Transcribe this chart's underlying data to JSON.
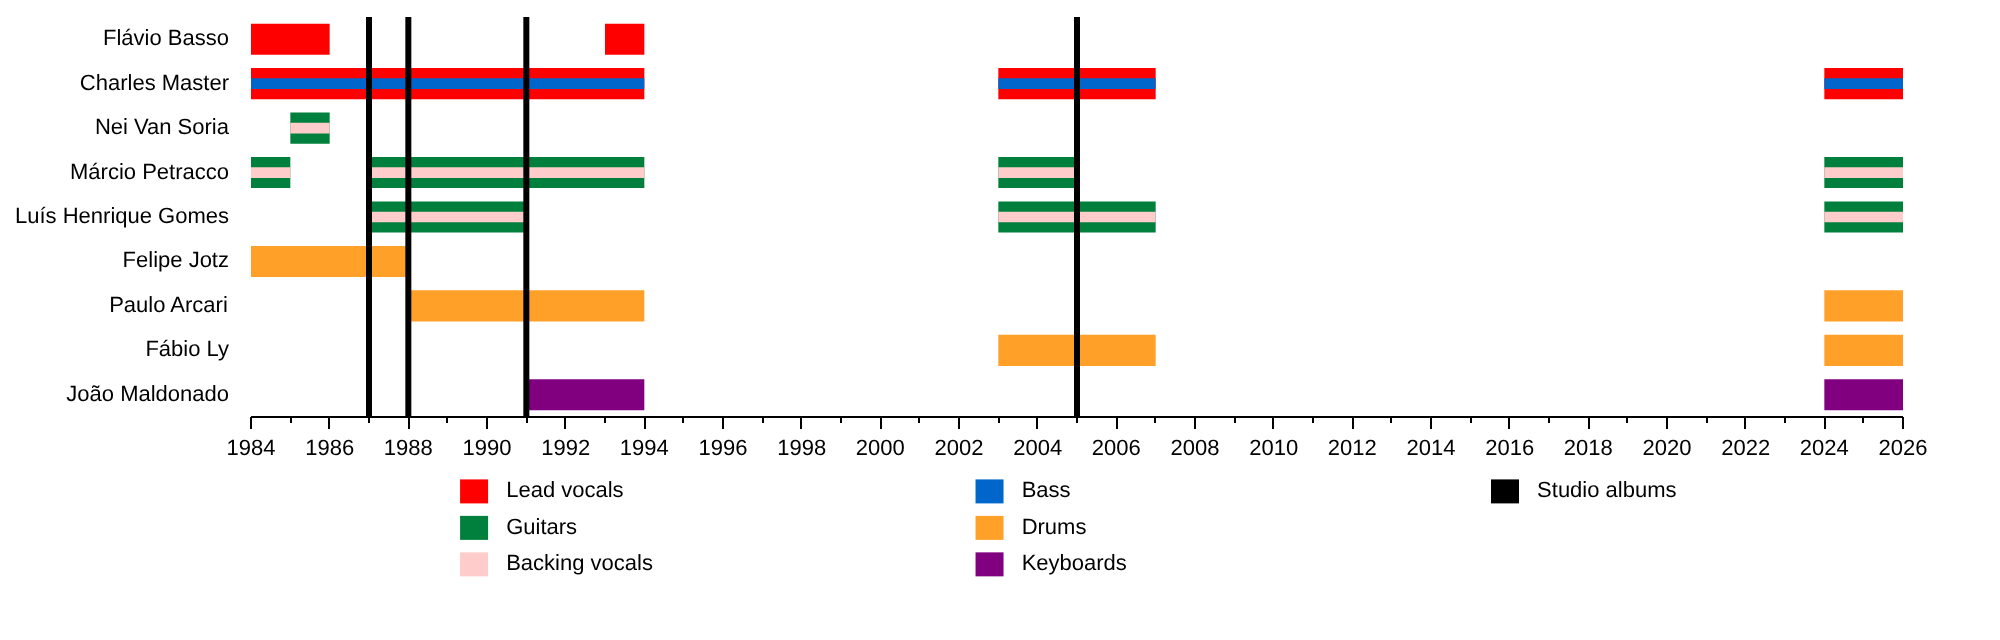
{
  "chart_data": {
    "type": "bar",
    "orientation": "horizontal",
    "legend": "bottom",
    "categories": [
      "Flávio Basso",
      "Charles Master",
      "Nei Van Soria",
      "Márcio Petracco",
      "Luís Henrique Gomes",
      "Felipe Jotz",
      "Paulo Arcari",
      "Fábio Ly",
      "João Maldonado"
    ],
    "xlim": [
      1984,
      2026
    ],
    "xticks": [
      1984,
      1986,
      1988,
      1990,
      1992,
      1994,
      1996,
      1998,
      2000,
      2002,
      2004,
      2006,
      2008,
      2010,
      2012,
      2014,
      2016,
      2018,
      2020,
      2022,
      2024,
      2026
    ],
    "series": [
      {
        "name": "Lead vocals",
        "color": "#ff0000",
        "base": [
          1984,
          1984,
          null,
          null,
          null,
          null,
          null,
          null,
          null
        ],
        "values": [
          2,
          10,
          null,
          null,
          null,
          null,
          null,
          null,
          null
        ]
      },
      {
        "name": "Guitars",
        "color": "#00803c",
        "base": [
          null,
          null,
          1985,
          1984,
          1987,
          null,
          null,
          null,
          null
        ],
        "values": [
          null,
          null,
          1,
          1,
          4,
          null,
          null,
          null,
          null
        ]
      },
      {
        "name": "Backing vocals",
        "color": "#ffcccc",
        "base": [
          null,
          null,
          1985,
          1984,
          1987,
          null,
          null,
          null,
          null
        ],
        "values": [
          null,
          null,
          1,
          1,
          4,
          null,
          null,
          null,
          null
        ]
      },
      {
        "name": "Bass",
        "color": "#0066cc",
        "base": [
          null,
          1984,
          null,
          null,
          null,
          null,
          null,
          null,
          null
        ],
        "values": [
          null,
          10,
          null,
          null,
          null,
          null,
          null,
          null,
          null
        ]
      },
      {
        "name": "Drums",
        "color": "#ffa028",
        "base": [
          null,
          null,
          null,
          null,
          null,
          1984,
          1988,
          2003,
          null
        ],
        "values": [
          null,
          null,
          null,
          null,
          null,
          4,
          6,
          4,
          null
        ]
      },
      {
        "name": "Keyboards",
        "color": "#800080",
        "base": [
          null,
          null,
          null,
          null,
          null,
          null,
          null,
          null,
          1991
        ],
        "values": [
          null,
          null,
          null,
          null,
          null,
          null,
          null,
          null,
          3
        ]
      },
      {
        "color": "#ff0000",
        "base": [
          1993,
          2003,
          null,
          null,
          null,
          null,
          null,
          null,
          null
        ],
        "values": [
          1,
          4,
          null,
          null,
          null,
          null,
          null,
          null,
          null
        ]
      },
      {
        "color": "#ff0000",
        "base": [
          null,
          2024,
          null,
          null,
          null,
          null,
          null,
          null,
          null
        ],
        "values": [
          null,
          2,
          null,
          null,
          null,
          null,
          null,
          null,
          null
        ]
      },
      {
        "color": "#00803c",
        "base": [
          null,
          null,
          null,
          1987,
          2003,
          null,
          null,
          null,
          null
        ],
        "values": [
          null,
          null,
          null,
          7,
          4,
          null,
          null,
          null,
          null
        ]
      },
      {
        "color": "#00803c",
        "base": [
          null,
          null,
          null,
          2003,
          2024,
          null,
          null,
          null,
          null
        ],
        "values": [
          null,
          null,
          null,
          2,
          2,
          null,
          null,
          null,
          null
        ]
      },
      {
        "color": "#00803c",
        "base": [
          null,
          null,
          null,
          2024,
          null,
          null,
          null,
          null,
          null
        ],
        "values": [
          null,
          null,
          null,
          2,
          null,
          null,
          null,
          null,
          null
        ]
      },
      {
        "color": "#ffcccc",
        "base": [
          null,
          null,
          null,
          1987,
          2003,
          null,
          null,
          null,
          null
        ],
        "values": [
          null,
          null,
          null,
          7,
          4,
          null,
          null,
          null,
          null
        ]
      },
      {
        "color": "#ffcccc",
        "base": [
          null,
          null,
          null,
          2003,
          2024,
          null,
          null,
          null,
          null
        ],
        "values": [
          null,
          null,
          null,
          2,
          2,
          null,
          null,
          null,
          null
        ]
      },
      {
        "color": "#ffcccc",
        "base": [
          null,
          null,
          null,
          2024,
          null,
          null,
          null,
          null,
          null
        ],
        "values": [
          null,
          null,
          null,
          2,
          null,
          null,
          null,
          null,
          null
        ]
      },
      {
        "color": "#0066cc",
        "base": [
          null,
          2003,
          null,
          null,
          null,
          null,
          null,
          null,
          null
        ],
        "values": [
          null,
          4,
          null,
          null,
          null,
          null,
          null,
          null,
          null
        ]
      },
      {
        "color": "#0066cc",
        "base": [
          null,
          2024,
          null,
          null,
          null,
          null,
          null,
          null,
          null
        ],
        "values": [
          null,
          2,
          null,
          null,
          null,
          null,
          null,
          null,
          null
        ]
      },
      {
        "color": "#ffa028",
        "base": [
          null,
          null,
          null,
          null,
          null,
          null,
          2024,
          2024,
          null
        ],
        "values": [
          null,
          null,
          null,
          null,
          null,
          null,
          2,
          2,
          null
        ]
      },
      {
        "color": "#800080",
        "base": [
          null,
          null,
          null,
          null,
          null,
          null,
          null,
          null,
          2024
        ],
        "values": [
          null,
          null,
          null,
          null,
          null,
          null,
          null,
          null,
          2
        ]
      }
    ],
    "ref_lines": [
      {
        "axis": "x",
        "value": 1987,
        "label": "Studio albums",
        "color": "#000000"
      },
      {
        "axis": "x",
        "value": 1988,
        "color": "#000000"
      },
      {
        "axis": "x",
        "value": 1991,
        "color": "#000000"
      },
      {
        "axis": "x",
        "value": 2005,
        "color": "#000000"
      }
    ]
  }
}
